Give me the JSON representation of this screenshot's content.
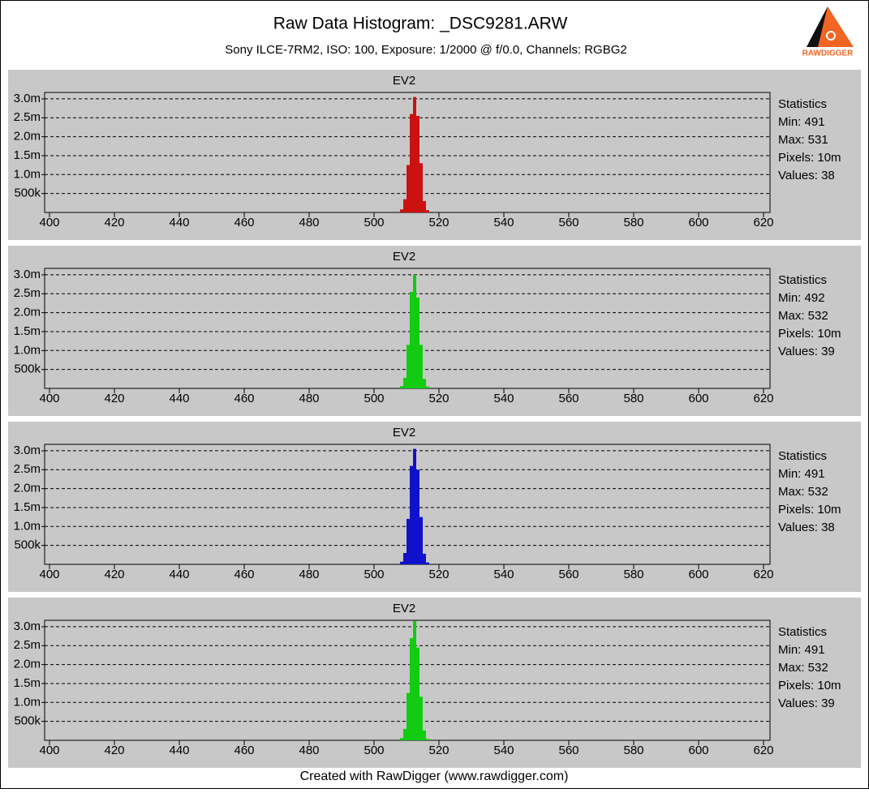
{
  "header": {
    "title": "Raw Data Histogram: _DSC9281.ARW",
    "subtitle": "Sony ILCE-7RM2, ISO: 100, Exposure: 1/2000 @ f/0.0, Channels: RGBG2",
    "logo": "RAWDIGGER"
  },
  "footer": "Created with RawDigger (www.rawdigger.com)",
  "chart_data": [
    {
      "type": "histogram",
      "title": "EV2",
      "color": "#cc1111",
      "bins": [
        508,
        509,
        510,
        511,
        512,
        513,
        514,
        515,
        516,
        517
      ],
      "values": [
        80000,
        350000,
        1250000,
        2600000,
        3050000,
        2550000,
        1300000,
        300000,
        60000
      ],
      "xlim": [
        398.5,
        622
      ],
      "xticks": [
        400,
        420,
        440,
        460,
        480,
        500,
        520,
        540,
        560,
        580,
        600,
        620
      ],
      "ylim": [
        0,
        3170000
      ],
      "yticks": [
        {
          "value": 500000,
          "label": "500k"
        },
        {
          "value": 1000000,
          "label": "1.0m"
        },
        {
          "value": 1500000,
          "label": "1.5m"
        },
        {
          "value": 2000000,
          "label": "2.0m"
        },
        {
          "value": 2500000,
          "label": "2.5m"
        },
        {
          "value": 3000000,
          "label": "3.0m"
        }
      ],
      "grid": true,
      "stats": [
        "Statistics",
        "Min: 491",
        "Max: 531",
        "Pixels: 10m",
        "Values: 38"
      ]
    },
    {
      "type": "histogram",
      "title": "EV2",
      "color": "#11cc11",
      "bins": [
        508,
        509,
        510,
        511,
        512,
        513,
        514,
        515,
        516,
        517
      ],
      "values": [
        60000,
        280000,
        1150000,
        2550000,
        3000000,
        2400000,
        1150000,
        250000,
        50000
      ],
      "xlim": [
        398.5,
        622
      ],
      "xticks": [
        400,
        420,
        440,
        460,
        480,
        500,
        520,
        540,
        560,
        580,
        600,
        620
      ],
      "ylim": [
        0,
        3170000
      ],
      "yticks": [
        {
          "value": 500000,
          "label": "500k"
        },
        {
          "value": 1000000,
          "label": "1.0m"
        },
        {
          "value": 1500000,
          "label": "1.5m"
        },
        {
          "value": 2000000,
          "label": "2.0m"
        },
        {
          "value": 2500000,
          "label": "2.5m"
        },
        {
          "value": 3000000,
          "label": "3.0m"
        }
      ],
      "grid": true,
      "stats": [
        "Statistics",
        "Min: 492",
        "Max: 532",
        "Pixels: 10m",
        "Values: 39"
      ]
    },
    {
      "type": "histogram",
      "title": "EV2",
      "color": "#1111cc",
      "bins": [
        508,
        509,
        510,
        511,
        512,
        513,
        514,
        515,
        516,
        517
      ],
      "values": [
        70000,
        300000,
        1200000,
        2600000,
        3050000,
        2500000,
        1250000,
        280000,
        50000
      ],
      "xlim": [
        398.5,
        622
      ],
      "xticks": [
        400,
        420,
        440,
        460,
        480,
        500,
        520,
        540,
        560,
        580,
        600,
        620
      ],
      "ylim": [
        0,
        3170000
      ],
      "yticks": [
        {
          "value": 500000,
          "label": "500k"
        },
        {
          "value": 1000000,
          "label": "1.0m"
        },
        {
          "value": 1500000,
          "label": "1.5m"
        },
        {
          "value": 2000000,
          "label": "2.0m"
        },
        {
          "value": 2500000,
          "label": "2.5m"
        },
        {
          "value": 3000000,
          "label": "3.0m"
        }
      ],
      "grid": true,
      "stats": [
        "Statistics",
        "Min: 491",
        "Max: 532",
        "Pixels: 10m",
        "Values: 38"
      ]
    },
    {
      "type": "histogram",
      "title": "EV2",
      "color": "#11cc11",
      "bins": [
        508,
        509,
        510,
        511,
        512,
        513,
        514,
        515,
        516,
        517
      ],
      "values": [
        60000,
        300000,
        1250000,
        2700000,
        3150000,
        2450000,
        1150000,
        260000,
        40000
      ],
      "xlim": [
        398.5,
        622
      ],
      "xticks": [
        400,
        420,
        440,
        460,
        480,
        500,
        520,
        540,
        560,
        580,
        600,
        620
      ],
      "ylim": [
        0,
        3170000
      ],
      "yticks": [
        {
          "value": 500000,
          "label": "500k"
        },
        {
          "value": 1000000,
          "label": "1.0m"
        },
        {
          "value": 1500000,
          "label": "1.5m"
        },
        {
          "value": 2000000,
          "label": "2.0m"
        },
        {
          "value": 2500000,
          "label": "2.5m"
        },
        {
          "value": 3000000,
          "label": "3.0m"
        }
      ],
      "grid": true,
      "stats": [
        "Statistics",
        "Min: 491",
        "Max: 532",
        "Pixels: 10m",
        "Values: 39"
      ]
    }
  ]
}
